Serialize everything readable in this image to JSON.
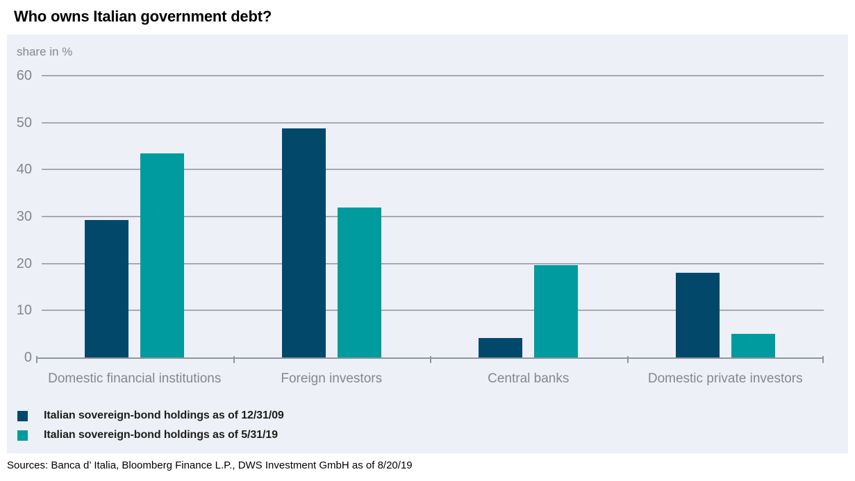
{
  "title": "Who owns Italian government debt?",
  "sources": "Sources: Banca d’ Italia, Bloomberg Finance L.P., DWS Investment GmbH as of 8/20/19",
  "colors": {
    "series_2009": "#02486b",
    "series_2019": "#009b9f",
    "panel_background": "#edf0f7",
    "gridline": "#a6a9ae",
    "axis": "#90969d",
    "axis_text": "#84888d",
    "legend_text": "#1d1d1b"
  },
  "chart_data": {
    "type": "bar",
    "title": "Who owns Italian government debt?",
    "ylabel": "share in %",
    "xlabel": "",
    "categories": [
      "Domestic financial institutions",
      "Foreign investors",
      "Central banks",
      "Domestic private investors"
    ],
    "series": [
      {
        "name": "Italian sovereign-bond holdings as of 12/31/09",
        "color": "#02486b",
        "values": [
          29.3,
          48.8,
          4.1,
          18.1
        ]
      },
      {
        "name": "Italian sovereign-bond holdings as of 5/31/19",
        "color": "#009b9f",
        "values": [
          43.4,
          31.9,
          19.7,
          5.1
        ]
      }
    ],
    "ylim": [
      0,
      60
    ],
    "yticks": [
      0,
      10,
      20,
      30,
      40,
      50,
      60
    ],
    "grid": true,
    "legend_position": "bottom-left"
  }
}
